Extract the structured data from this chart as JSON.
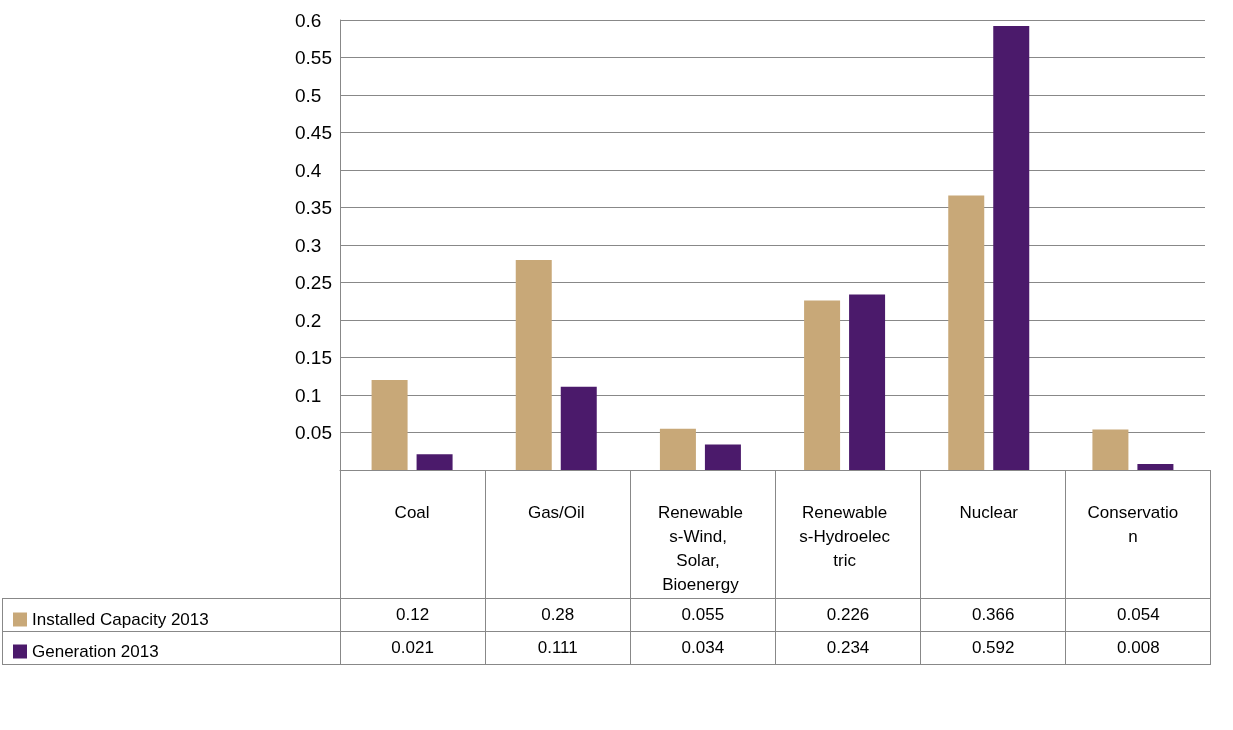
{
  "chart_data": {
    "type": "bar",
    "categories": [
      "Coal",
      "Gas/Oil",
      "Renewables-Wind, Solar, Bioenergy",
      "Renewables-Hydroelectric",
      "Nuclear",
      "Conservation"
    ],
    "series": [
      {
        "name": "Installed Capacity 2013",
        "color": "#c8a878",
        "values": [
          0.12,
          0.28,
          0.055,
          0.226,
          0.366,
          0.054
        ]
      },
      {
        "name": "Generation 2013",
        "color": "#4b1a6b",
        "values": [
          0.021,
          0.111,
          0.034,
          0.234,
          0.592,
          0.008
        ]
      }
    ],
    "ylim": [
      0,
      0.6
    ],
    "yticks": [
      {
        "value": 0,
        "label": null
      },
      0.05,
      0.1,
      0.15,
      0.2,
      0.25,
      0.3,
      0.35,
      0.4,
      0.45,
      0.5,
      0.55,
      0.6
    ],
    "grid": "y",
    "legend": "bottom left",
    "data_labels": true
  }
}
